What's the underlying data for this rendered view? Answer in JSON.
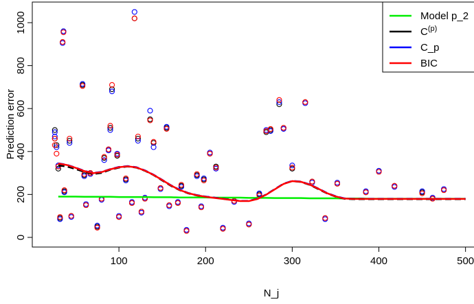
{
  "chart_data": {
    "type": "scatter",
    "xlabel": "N_j",
    "ylabel": "Prediction error",
    "xlim": [
      0,
      509
    ],
    "ylim": [
      -45,
      1096
    ],
    "xticks": [
      100,
      200,
      300,
      400,
      500
    ],
    "yticks": [
      0,
      200,
      400,
      600,
      800,
      1000
    ],
    "legend": "topright",
    "points": {
      "x": [
        26,
        26,
        28,
        30,
        32,
        35,
        36,
        37,
        43,
        45,
        58,
        60,
        62,
        67,
        75,
        80,
        83,
        88,
        90,
        92,
        98,
        100,
        108,
        115,
        118,
        122,
        126,
        130,
        136,
        140,
        148,
        155,
        158,
        168,
        172,
        178,
        190,
        195,
        198,
        205,
        212,
        220,
        233,
        250,
        262,
        270,
        275,
        285,
        290,
        300,
        315,
        323,
        338,
        352,
        385,
        400,
        418,
        450,
        462,
        475
      ],
      "series": [
        {
          "color": "#000000",
          "values": [
            460,
            500,
            430,
            320,
            90,
            910,
            960,
            215,
            450,
            100,
            710,
            290,
            150,
            300,
            50,
            180,
            370,
            410,
            510,
            690,
            380,
            95,
            270,
            160,
            1020,
            460,
            120,
            180,
            550,
            440,
            230,
            510,
            150,
            160,
            240,
            30,
            290,
            140,
            270,
            390,
            330,
            40,
            170,
            60,
            200,
            490,
            500,
            620,
            510,
            320,
            630,
            260,
            90,
            250,
            210,
            310,
            240,
            210,
            180,
            220
          ]
        },
        {
          "color": "#0000ff",
          "values": [
            470,
            490,
            420,
            335,
            85,
            905,
            960,
            210,
            440,
            95,
            715,
            285,
            155,
            295,
            55,
            175,
            360,
            405,
            500,
            680,
            390,
            100,
            265,
            165,
            1050,
            450,
            115,
            185,
            590,
            420,
            225,
            515,
            145,
            165,
            235,
            35,
            285,
            145,
            275,
            395,
            320,
            45,
            165,
            65,
            205,
            500,
            495,
            630,
            505,
            335,
            625,
            255,
            85,
            255,
            215,
            310,
            235,
            215,
            185,
            225
          ]
        },
        {
          "color": "#ff0000",
          "values": [
            430,
            460,
            390,
            330,
            95,
            910,
            955,
            220,
            460,
            100,
            705,
            295,
            150,
            300,
            45,
            180,
            375,
            410,
            520,
            710,
            385,
            95,
            275,
            160,
            1020,
            470,
            120,
            180,
            545,
            445,
            230,
            505,
            150,
            160,
            245,
            30,
            295,
            140,
            265,
            390,
            325,
            40,
            170,
            60,
            195,
            495,
            505,
            640,
            510,
            325,
            630,
            260,
            90,
            250,
            210,
            305,
            240,
            205,
            180,
            220
          ]
        }
      ]
    },
    "lines": {
      "x": [
        30,
        40,
        50,
        60,
        70,
        80,
        90,
        100,
        110,
        120,
        130,
        140,
        150,
        160,
        170,
        180,
        190,
        200,
        210,
        220,
        230,
        240,
        250,
        260,
        270,
        280,
        290,
        300,
        310,
        320,
        330,
        340,
        350,
        360,
        370,
        380,
        390,
        400,
        410,
        420,
        430,
        440,
        450,
        460,
        470,
        480,
        490,
        500
      ],
      "series": [
        {
          "name": "Model p_2",
          "color": "#00ee00",
          "dashed": false,
          "values": [
            190,
            190,
            190,
            189,
            189,
            189,
            189,
            188,
            188,
            188,
            188,
            187,
            187,
            187,
            186,
            186,
            186,
            186,
            185,
            185,
            185,
            185,
            184,
            184,
            184,
            183,
            183,
            183,
            183,
            182,
            182,
            182,
            182,
            181,
            181,
            181,
            180,
            180,
            180,
            180,
            180,
            180,
            180,
            180,
            180,
            180,
            180,
            180
          ]
        },
        {
          "name": "C(p)",
          "color": "#000000",
          "dashed": true,
          "values": [
            335,
            330,
            318,
            305,
            295,
            300,
            315,
            325,
            330,
            325,
            310,
            290,
            265,
            240,
            220,
            205,
            195,
            190,
            185,
            180,
            175,
            170,
            170,
            180,
            200,
            225,
            250,
            262,
            258,
            245,
            225,
            205,
            190,
            180,
            178,
            178,
            178,
            178,
            178,
            178,
            178,
            178,
            178,
            178,
            178,
            178,
            178,
            178
          ]
        },
        {
          "name": "C_p",
          "color": "#0000ff",
          "dashed": true,
          "values": [
            345,
            338,
            325,
            310,
            300,
            305,
            318,
            328,
            332,
            327,
            312,
            292,
            268,
            243,
            222,
            207,
            197,
            190,
            185,
            180,
            175,
            170,
            170,
            180,
            200,
            225,
            250,
            263,
            260,
            247,
            228,
            207,
            192,
            182,
            180,
            180,
            180,
            180,
            180,
            180,
            180,
            180,
            180,
            180,
            180,
            180,
            180,
            180
          ]
        },
        {
          "name": "BIC",
          "color": "#ff0000",
          "dashed": false,
          "values": [
            344,
            337,
            324,
            309,
            299,
            304,
            317,
            327,
            331,
            326,
            311,
            291,
            267,
            242,
            221,
            206,
            196,
            189,
            184,
            179,
            174,
            169,
            169,
            179,
            199,
            224,
            249,
            262,
            259,
            246,
            227,
            206,
            191,
            181,
            179,
            179,
            179,
            179,
            179,
            179,
            179,
            179,
            179,
            179,
            179,
            179,
            179,
            179
          ]
        }
      ]
    }
  }
}
